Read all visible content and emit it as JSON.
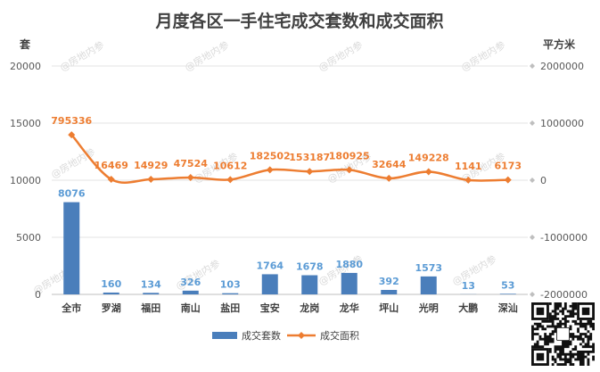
{
  "watermark_text": "@房地内参",
  "chart_data": {
    "type": "bar",
    "title": "月度各区一手住宅成交套数和成交面积",
    "ylabel": "套",
    "y2label": "平方米",
    "categories": [
      "全市",
      "罗湖",
      "福田",
      "南山",
      "盐田",
      "宝安",
      "龙岗",
      "龙华",
      "坪山",
      "光明",
      "大鹏",
      "深汕"
    ],
    "ylim": [
      0,
      20000
    ],
    "yticks": [
      "0",
      "5000",
      "10000",
      "15000",
      "20000"
    ],
    "y2lim": [
      -2000000,
      2000000
    ],
    "y2ticks": [
      "-2000000",
      "-1000000",
      "0",
      "1000000",
      "2000000"
    ],
    "grid": true,
    "legend_position": "bottom",
    "series": [
      {
        "name": "成交套数",
        "type": "bar",
        "axis": "left",
        "color": "#4a7ebb",
        "label_color": "#5b9bd5",
        "values": [
          8076,
          160,
          134,
          326,
          103,
          1764,
          1678,
          1880,
          392,
          1573,
          13,
          53
        ],
        "labels": [
          "8076",
          "160",
          "134",
          "326",
          "103",
          "1764",
          "1678",
          "1880",
          "392",
          "1573",
          "13",
          "53"
        ]
      },
      {
        "name": "成交面积",
        "type": "line",
        "axis": "right",
        "color": "#ed7d31",
        "values": [
          795336,
          16469,
          14929,
          47524,
          10612,
          182502,
          153187,
          180925,
          32644,
          149228,
          1141,
          6173
        ],
        "labels": [
          "795336",
          "16469",
          "14929",
          "47524",
          "10612",
          "182502",
          "153187",
          "180925",
          "32644",
          "149228",
          "1141",
          "6173"
        ]
      }
    ]
  }
}
